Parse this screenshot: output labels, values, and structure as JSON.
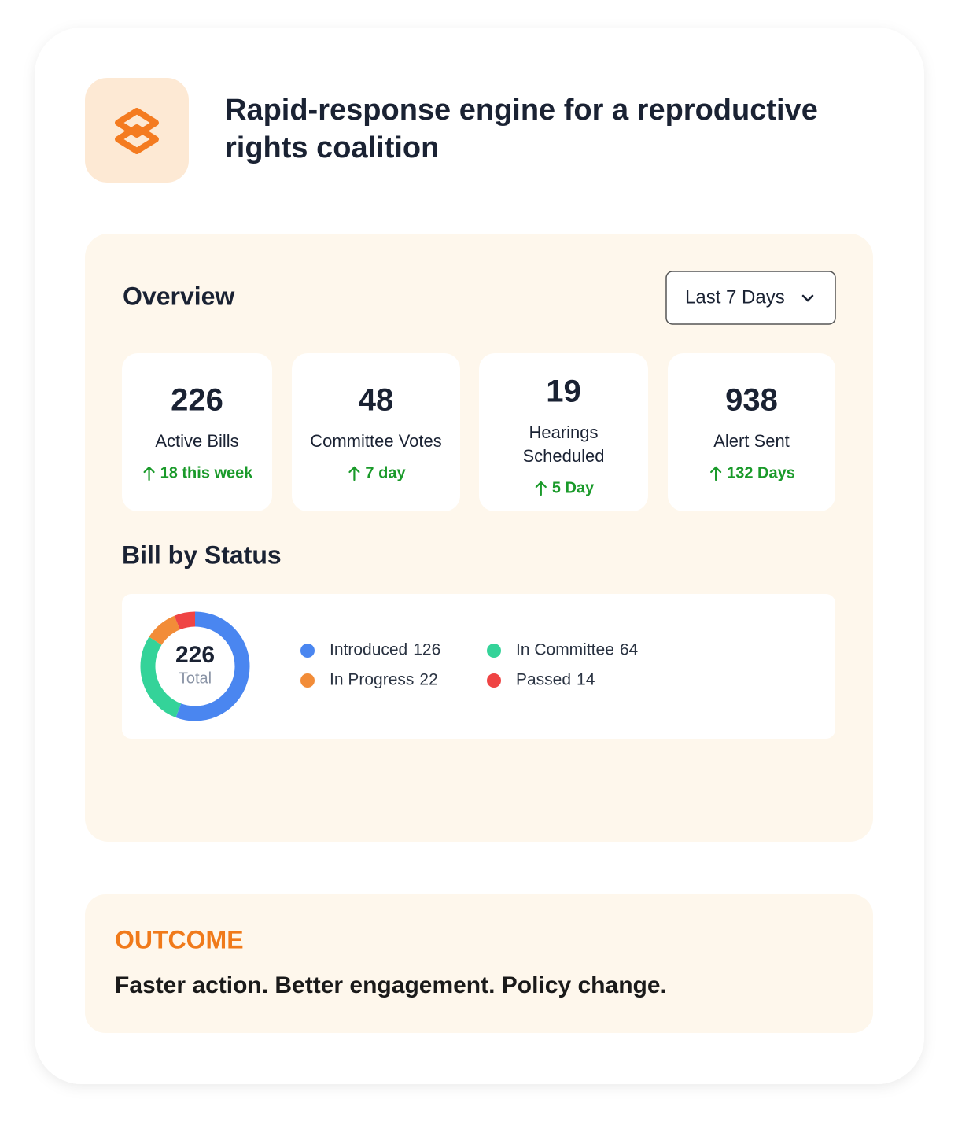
{
  "header": {
    "title_lines": [
      "Rapid-response engine for a reproductive",
      "rights coalition"
    ]
  },
  "overview": {
    "title": "Overview",
    "range": "Last 7 Days",
    "stats": [
      {
        "value": 226,
        "label_lines": [
          "Active Bills"
        ],
        "change": "18 this week"
      },
      {
        "value": 48,
        "label_lines": [
          "Committee Votes"
        ],
        "change": "7 day"
      },
      {
        "value": 19,
        "label_lines": [
          "Hearings",
          "Scheduled"
        ],
        "change": "5 Day"
      },
      {
        "value": 938,
        "label_lines": [
          "Alert Sent"
        ],
        "change": "132 Days"
      }
    ]
  },
  "chart_data": {
    "type": "donut",
    "title": "Bill by Status",
    "center_value": 226,
    "center_label": "Total",
    "categories": [
      "Introduced",
      "In Committee",
      "In Progress",
      "Passed"
    ],
    "values": [
      126,
      64,
      22,
      14
    ],
    "colors": [
      "#4a86f0",
      "#34d399",
      "#f28c38",
      "#ef4444"
    ]
  },
  "outcome": {
    "label": "OUTCOME",
    "text": "Faster action. Better engagement. Policy change."
  }
}
